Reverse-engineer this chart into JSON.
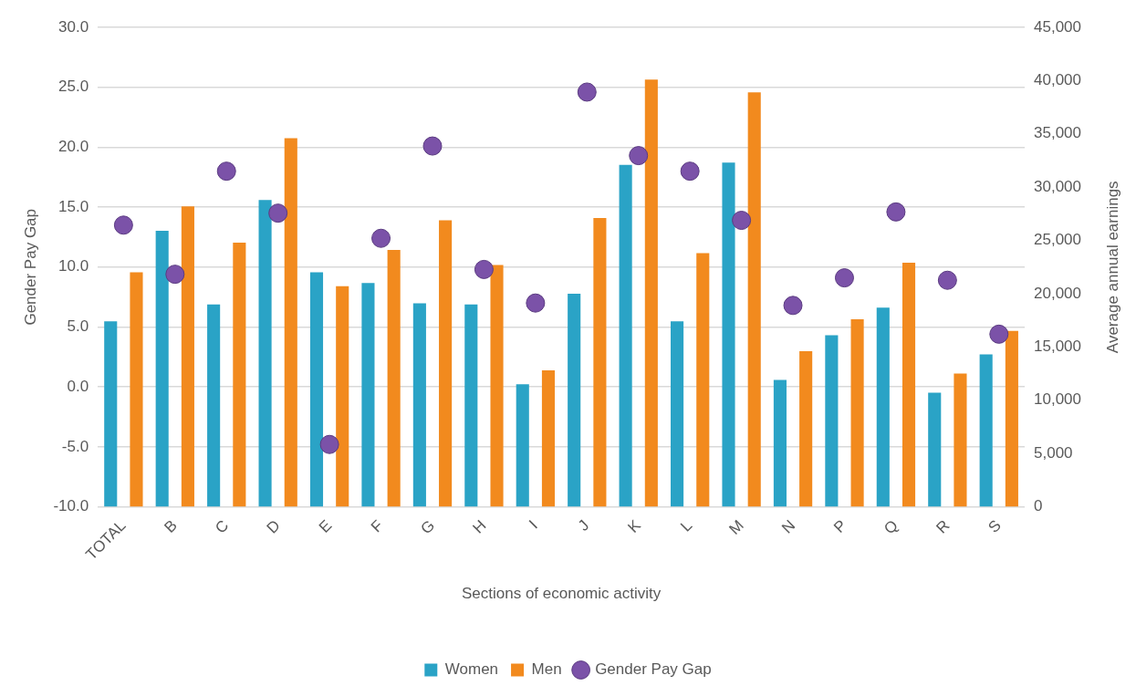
{
  "chart_data": {
    "type": "bar",
    "xlabel": "Sections of economic activity",
    "ylabel": "Gender Pay Gap",
    "y2label": "Average annual earnings",
    "categories": [
      "TOTAL",
      "B",
      "C",
      "D",
      "E",
      "F",
      "G",
      "H",
      "I",
      "J",
      "K",
      "L",
      "M",
      "N",
      "P",
      "Q",
      "R",
      "S"
    ],
    "series": [
      {
        "name": "Women",
        "type": "bar",
        "axis": "y2",
        "color": "#2aa3c6",
        "values": [
          17400,
          25900,
          19000,
          28800,
          22000,
          21000,
          19100,
          19000,
          11500,
          20000,
          32100,
          17400,
          32300,
          11900,
          16100,
          18700,
          10700,
          14300
        ]
      },
      {
        "name": "Men",
        "type": "bar",
        "axis": "y2",
        "color": "#f28a1e",
        "values": [
          22000,
          28200,
          24800,
          34600,
          20700,
          24100,
          26900,
          22700,
          12800,
          27100,
          40100,
          23800,
          38900,
          14600,
          17600,
          22900,
          12500,
          16500
        ]
      },
      {
        "name": "Gender Pay Gap",
        "type": "scatter",
        "axis": "y",
        "color": "#7b52a8",
        "x": [
          "TOTAL",
          "B",
          "C",
          "D",
          "E",
          "F",
          "G",
          "H",
          "I",
          "J",
          "K",
          "L",
          "M",
          "N",
          "P",
          "Q",
          "R",
          "S"
        ],
        "values": [
          13.5,
          9.4,
          18.0,
          14.5,
          -4.8,
          12.4,
          20.1,
          9.8,
          7.0,
          24.6,
          19.3,
          18.0,
          13.9,
          6.8,
          9.1,
          14.6,
          8.9,
          4.4
        ]
      }
    ],
    "ylim": [
      -10,
      30
    ],
    "yticks": [
      {
        "value": -10,
        "label": "-10.0"
      },
      {
        "value": -5,
        "label": "-5.0"
      },
      {
        "value": 0,
        "label": "0.0"
      },
      {
        "value": 5,
        "label": "5.0"
      },
      {
        "value": 10,
        "label": "10.0"
      },
      {
        "value": 15,
        "label": "15.0"
      },
      {
        "value": 20,
        "label": "20.0"
      },
      {
        "value": 25,
        "label": "25.0"
      },
      {
        "value": 30,
        "label": "30.0"
      }
    ],
    "y2lim": [
      0,
      45000
    ],
    "y2ticks": [
      0,
      {
        "value": 5000,
        "label": "5,000"
      },
      {
        "value": 10000,
        "label": "10,000"
      },
      {
        "value": 15000,
        "label": "15,000"
      },
      {
        "value": 20000,
        "label": "20,000"
      },
      {
        "value": 25000,
        "label": "25,000"
      },
      {
        "value": 30000,
        "label": "30,000"
      },
      {
        "value": 35000,
        "label": "35,000"
      },
      {
        "value": 40000,
        "label": "40,000"
      },
      {
        "value": 45000,
        "label": "45,000"
      }
    ],
    "grid": "y",
    "legend": "bottom",
    "marker": "circle"
  }
}
